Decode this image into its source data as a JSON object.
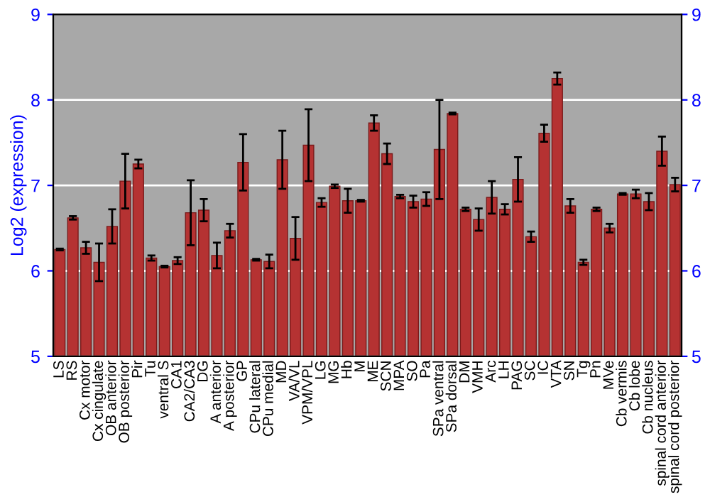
{
  "chart_data": {
    "type": "bar",
    "ylabel": "Log2 (expression)",
    "categories": [
      "LS",
      "RS",
      "Cx motor",
      "Cx cingulate",
      "OB anterior",
      "OB posterior",
      "Pir",
      "Tu",
      "ventral S",
      "CA1",
      "CA2/CA3",
      "DG",
      "A anterior",
      "A posterior",
      "GP",
      "CPu lateral",
      "CPu medial",
      "MD",
      "VA/VL",
      "VPM/VPL",
      "LG",
      "MG",
      "Hb",
      "M",
      "ME",
      "SCN",
      "MPA",
      "SO",
      "Pa",
      "SPa ventral",
      "SPa dorsal",
      "DM",
      "VMH",
      "Arc",
      "LH",
      "PAG",
      "SC",
      "IC",
      "VTA",
      "SN",
      "Tg",
      "Pn",
      "MVe",
      "Cb vermis",
      "Cb lobe",
      "Cb nucleus",
      "spinal cord anterior",
      "spinal cord posterior"
    ],
    "values": [
      6.25,
      6.62,
      6.27,
      6.1,
      6.52,
      7.05,
      7.25,
      6.15,
      6.05,
      6.12,
      6.68,
      6.71,
      6.18,
      6.47,
      7.27,
      6.13,
      6.11,
      7.3,
      6.38,
      7.47,
      6.8,
      6.99,
      6.82,
      6.82,
      7.73,
      7.37,
      6.87,
      6.81,
      6.84,
      7.42,
      7.84,
      6.72,
      6.6,
      6.86,
      6.72,
      7.07,
      6.4,
      7.61,
      8.25,
      6.76,
      6.1,
      6.72,
      6.5,
      6.9,
      6.9,
      6.81,
      7.4,
      7.01
    ],
    "errors": [
      0.01,
      0.02,
      0.07,
      0.22,
      0.2,
      0.32,
      0.05,
      0.03,
      0.01,
      0.04,
      0.38,
      0.13,
      0.15,
      0.08,
      0.33,
      0.01,
      0.08,
      0.34,
      0.25,
      0.42,
      0.05,
      0.02,
      0.14,
      0.01,
      0.09,
      0.12,
      0.02,
      0.07,
      0.08,
      0.58,
      0.01,
      0.02,
      0.13,
      0.19,
      0.06,
      0.26,
      0.06,
      0.1,
      0.07,
      0.08,
      0.03,
      0.02,
      0.05,
      0.01,
      0.05,
      0.1,
      0.17,
      0.08
    ],
    "color": "#b53232",
    "ylim": [
      5,
      9
    ],
    "yticks": [
      5,
      6,
      7,
      8,
      9
    ],
    "y2lim": [
      5,
      9
    ],
    "y2ticks": [
      5,
      6,
      7,
      8,
      9
    ],
    "grid": "y"
  }
}
